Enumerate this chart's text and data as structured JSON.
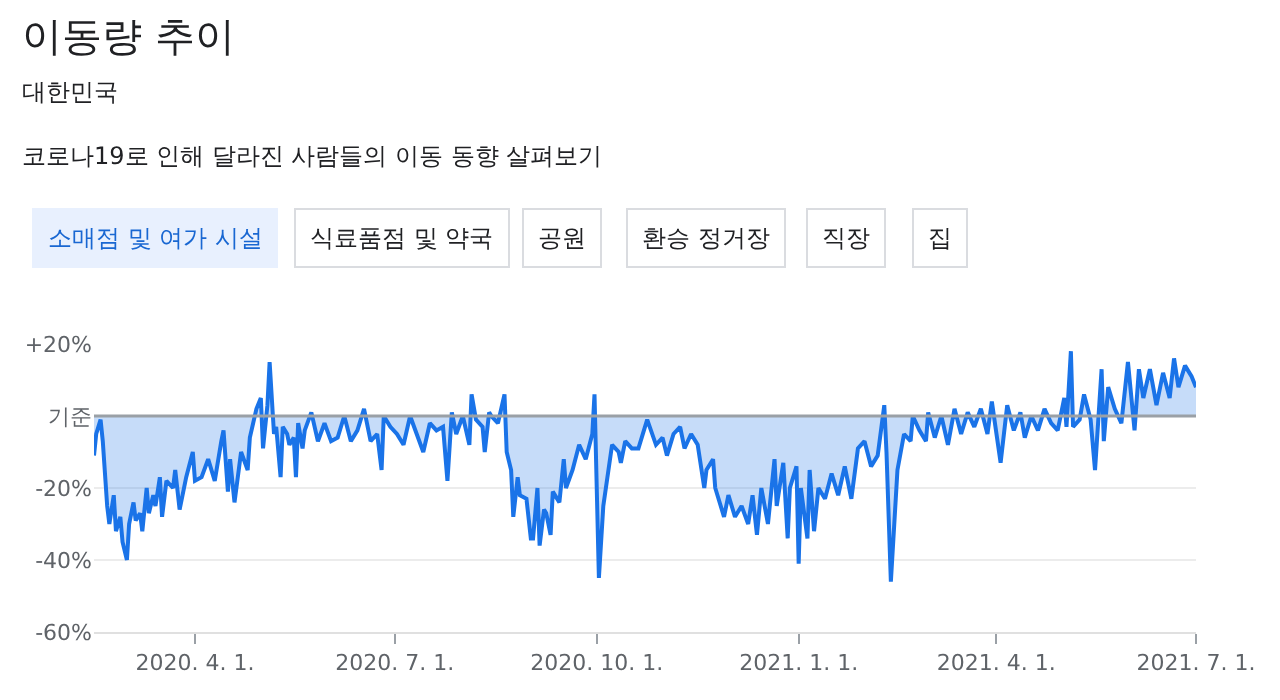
{
  "chart_data": {
    "type": "area",
    "title": "이동량 추이",
    "subtitle": "대한민국",
    "annotations": [
      "코로나19로 인해 달라진 사람들의 이동 동향 살펴보기",
      "소매점 및 여가 시설",
      "식료품점 및 약국",
      "공원",
      "환승 정거장",
      "직장",
      "집"
    ],
    "x": [
      "2020-02-15",
      "2020-02-16",
      "2020-02-18",
      "2020-02-19",
      "2020-02-21",
      "2020-02-22",
      "2020-02-24",
      "2020-02-25",
      "2020-02-27",
      "2020-02-28",
      "2020-03-01",
      "2020-03-02",
      "2020-03-04",
      "2020-03-05",
      "2020-03-07",
      "2020-03-08",
      "2020-03-10",
      "2020-03-11",
      "2020-03-13",
      "2020-03-14",
      "2020-03-16",
      "2020-03-17",
      "2020-03-19",
      "2020-03-22",
      "2020-03-23",
      "2020-03-25",
      "2020-03-28",
      "2020-03-31",
      "2020-04-01",
      "2020-04-04",
      "2020-04-07",
      "2020-04-10",
      "2020-04-13",
      "2020-04-14",
      "2020-04-16",
      "2020-04-17",
      "2020-04-19",
      "2020-04-22",
      "2020-04-25",
      "2020-04-26",
      "2020-04-29",
      "2020-05-01",
      "2020-05-02",
      "2020-05-04",
      "2020-05-05",
      "2020-05-07",
      "2020-05-08",
      "2020-05-10",
      "2020-05-11",
      "2020-05-13",
      "2020-05-14",
      "2020-05-16",
      "2020-05-17",
      "2020-05-18",
      "2020-05-20",
      "2020-05-21",
      "2020-05-24",
      "2020-05-27",
      "2020-05-30",
      "2020-06-02",
      "2020-06-05",
      "2020-06-08",
      "2020-06-11",
      "2020-06-14",
      "2020-06-17",
      "2020-06-20",
      "2020-06-23",
      "2020-06-25",
      "2020-06-26",
      "2020-06-29",
      "2020-07-02",
      "2020-07-05",
      "2020-07-08",
      "2020-07-11",
      "2020-07-14",
      "2020-07-17",
      "2020-07-20",
      "2020-07-23",
      "2020-07-25",
      "2020-07-27",
      "2020-07-29",
      "2020-08-01",
      "2020-08-04",
      "2020-08-05",
      "2020-08-07",
      "2020-08-10",
      "2020-08-11",
      "2020-08-13",
      "2020-08-14",
      "2020-08-17",
      "2020-08-20",
      "2020-08-21",
      "2020-08-23",
      "2020-08-24",
      "2020-08-26",
      "2020-08-27",
      "2020-08-30",
      "2020-09-01",
      "2020-09-02",
      "2020-09-04",
      "2020-09-05",
      "2020-09-07",
      "2020-09-08",
      "2020-09-10",
      "2020-09-11",
      "2020-09-14",
      "2020-09-16",
      "2020-09-17",
      "2020-09-20",
      "2020-09-23",
      "2020-09-26",
      "2020-09-29",
      "2020-09-30",
      "2020-10-02",
      "2020-10-04",
      "2020-10-08",
      "2020-10-11",
      "2020-10-12",
      "2020-10-14",
      "2020-10-17",
      "2020-10-20",
      "2020-10-24",
      "2020-10-28",
      "2020-10-31",
      "2020-11-02",
      "2020-11-05",
      "2020-11-08",
      "2020-11-10",
      "2020-11-13",
      "2020-11-16",
      "2020-11-19",
      "2020-11-20",
      "2020-11-23",
      "2020-11-24",
      "2020-11-28",
      "2020-11-30",
      "2020-12-03",
      "2020-12-06",
      "2020-12-09",
      "2020-12-11",
      "2020-12-13",
      "2020-12-15",
      "2020-12-18",
      "2020-12-21",
      "2020-12-22",
      "2020-12-25",
      "2020-12-27",
      "2020-12-28",
      "2020-12-31",
      "2021-01-01",
      "2021-01-02",
      "2021-01-05",
      "2021-01-06",
      "2021-01-08",
      "2021-01-10",
      "2021-01-13",
      "2021-01-16",
      "2021-01-19",
      "2021-01-22",
      "2021-01-25",
      "2021-01-28",
      "2021-01-31",
      "2021-02-03",
      "2021-02-06",
      "2021-02-09",
      "2021-02-10",
      "2021-02-12",
      "2021-02-15",
      "2021-02-18",
      "2021-02-21",
      "2021-02-22",
      "2021-02-25",
      "2021-02-28",
      "2021-03-01",
      "2021-03-04",
      "2021-03-07",
      "2021-03-10",
      "2021-03-13",
      "2021-03-16",
      "2021-03-19",
      "2021-03-22",
      "2021-03-25",
      "2021-03-28",
      "2021-03-30",
      "2021-04-03",
      "2021-04-06",
      "2021-04-09",
      "2021-04-12",
      "2021-04-14",
      "2021-04-17",
      "2021-04-20",
      "2021-04-23",
      "2021-04-26",
      "2021-04-29",
      "2021-05-02",
      "2021-05-03",
      "2021-05-05",
      "2021-05-06",
      "2021-05-09",
      "2021-05-11",
      "2021-05-14",
      "2021-05-16",
      "2021-05-19",
      "2021-05-20",
      "2021-05-22",
      "2021-05-25",
      "2021-05-28",
      "2021-05-31",
      "2021-06-03",
      "2021-06-05",
      "2021-06-07",
      "2021-06-10",
      "2021-06-13",
      "2021-06-16",
      "2021-06-19",
      "2021-06-21",
      "2021-06-23",
      "2021-06-26",
      "2021-06-29",
      "2021-07-01"
    ],
    "series": [
      {
        "color": "#1a73e8",
        "values": [
          -11,
          -5,
          -1,
          -7,
          -25,
          -30,
          -22,
          -32,
          -28,
          -35,
          -40,
          -30,
          -24,
          -29,
          -27,
          -32,
          -20,
          -27,
          -22,
          -25,
          -17,
          -28,
          -18,
          -20,
          -15,
          -26,
          -17,
          -10,
          -18,
          -17,
          -12,
          -18,
          -7,
          -4,
          -21,
          -12,
          -24,
          -10,
          -15,
          -6,
          2,
          5,
          -9,
          3,
          15,
          -5,
          -3,
          -17,
          -3,
          -5,
          -8,
          -6,
          -17,
          -2,
          -9,
          -4,
          1,
          -7,
          -2,
          -7,
          -6,
          0,
          -7,
          -4,
          2,
          -7,
          -5,
          -15,
          0,
          -3,
          -5,
          -8,
          0,
          -5,
          -10,
          -2,
          -4,
          -3,
          -18,
          1,
          -5,
          0,
          -8,
          6,
          -1,
          -3,
          -10,
          1,
          0,
          -2,
          6,
          -10,
          -15,
          -28,
          -17,
          -22,
          -23,
          -34,
          -34,
          -20,
          -36,
          -26,
          -27,
          -33,
          -21,
          -24,
          -12,
          -20,
          -15,
          -8,
          -12,
          -5,
          6,
          -45,
          -25,
          -8,
          -10,
          -13,
          -7,
          -9,
          -9,
          -1,
          -8,
          -6,
          -11,
          -5,
          -3,
          -9,
          -5,
          -8,
          -20,
          -15,
          -12,
          -20,
          -28,
          -22,
          -28,
          -25,
          -30,
          -22,
          -33,
          -20,
          -30,
          -12,
          -25,
          -13,
          -34,
          -20,
          -14,
          -41,
          -20,
          -34,
          -15,
          -32,
          -20,
          -23,
          -16,
          -22,
          -14,
          -23,
          -9,
          -7,
          -14,
          -11,
          3,
          -10,
          -46,
          -15,
          -5,
          -7,
          0,
          -4,
          -7,
          1,
          -6,
          0,
          -8,
          2,
          -5,
          1,
          -3,
          2,
          -5,
          4,
          -13,
          3,
          -4,
          1,
          -6,
          0,
          -4,
          2,
          -2,
          -4,
          5,
          -3,
          18,
          -3,
          -1,
          6,
          -1,
          -15,
          13,
          -7,
          8,
          2,
          -2,
          15,
          -4,
          13,
          5,
          13,
          3,
          12,
          5,
          16,
          8,
          14,
          11,
          8
        ]
      }
    ],
    "xlim": [
      "2020-02-15",
      "2021-07-01"
    ],
    "xticks": [
      {
        "value": "2020-04-01",
        "label": "2020. 4. 1."
      },
      {
        "value": "2020-07-01",
        "label": "2020. 7. 1."
      },
      {
        "value": "2020-10-01",
        "label": "2020. 10. 1."
      },
      {
        "value": "2021-01-01",
        "label": "2021. 1. 1."
      },
      {
        "value": "2021-04-01",
        "label": "2021. 4. 1."
      },
      {
        "value": "2021-07-01",
        "label": "2021. 7. 1."
      }
    ],
    "ylim": [
      -60,
      20
    ],
    "yticks": [
      {
        "value": 20,
        "label": "+20%"
      },
      {
        "value": 0,
        "label": "기준"
      },
      {
        "value": -20,
        "label": "-20%"
      },
      {
        "value": -40,
        "label": "-40%"
      },
      {
        "value": -60,
        "label": "-60%"
      }
    ],
    "ref_lines": [
      {
        "axis": "y",
        "value": 0,
        "color": "#9aa0a6"
      }
    ],
    "grid": "y"
  }
}
